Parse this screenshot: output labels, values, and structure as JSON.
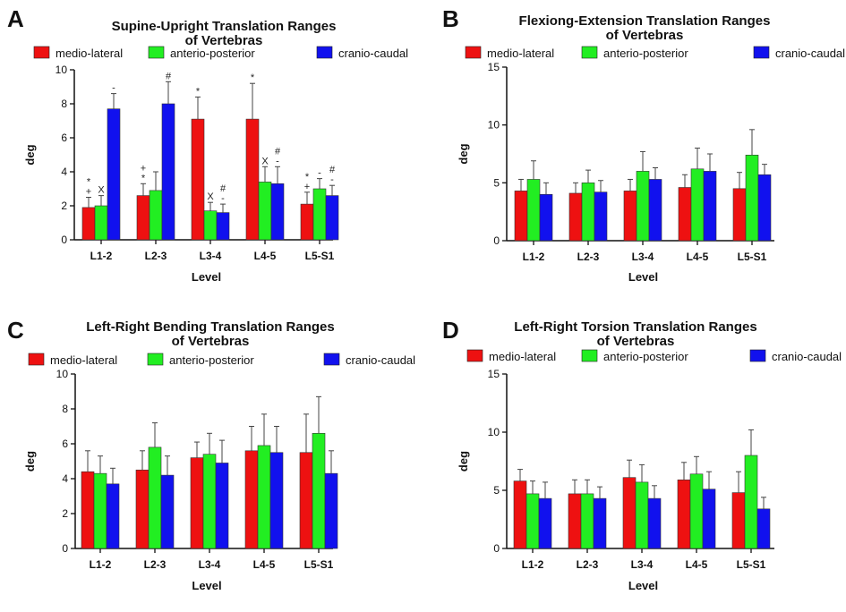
{
  "figure_colors": {
    "medio-lateral": "#ee1111",
    "anterio-posterior": "#22ee22",
    "cranio-caudal": "#1111ee"
  },
  "chart_data": [
    {
      "panel": "A",
      "type": "bar",
      "title_lines": [
        "Supine-Upright Translation Ranges",
        "of Vertebras"
      ],
      "xlabel": "Level",
      "ylabel": "deg",
      "ylim": [
        0,
        10
      ],
      "yticks": [
        0,
        2,
        4,
        6,
        8,
        10
      ],
      "categories": [
        "L1-2",
        "L2-3",
        "L3-4",
        "L4-5",
        "L5-S1"
      ],
      "series": [
        {
          "name": "medio-lateral",
          "color": "#ee1111",
          "values": [
            1.9,
            2.6,
            7.1,
            7.1,
            2.1
          ],
          "errors": [
            0.6,
            0.7,
            1.3,
            2.1,
            0.7
          ]
        },
        {
          "name": "anterio-posterior",
          "color": "#22ee22",
          "values": [
            2.0,
            2.9,
            1.7,
            3.4,
            3.0
          ],
          "errors": [
            0.6,
            1.1,
            0.5,
            0.9,
            0.6
          ]
        },
        {
          "name": "cranio-caudal",
          "color": "#1111ee",
          "values": [
            7.7,
            8.0,
            1.6,
            3.3,
            2.6
          ],
          "errors": [
            0.9,
            1.3,
            0.5,
            1.0,
            0.6
          ]
        }
      ],
      "annotations": [
        {
          "category": 0,
          "series": 0,
          "lines": [
            "*",
            "+"
          ]
        },
        {
          "category": 0,
          "series": 1,
          "lines": [
            "X"
          ]
        },
        {
          "category": 0,
          "series": 2,
          "lines": [
            "-"
          ]
        },
        {
          "category": 1,
          "series": 0,
          "lines": [
            "+",
            "*"
          ]
        },
        {
          "category": 1,
          "series": 2,
          "lines": [
            "#"
          ]
        },
        {
          "category": 2,
          "series": 0,
          "lines": [
            "*"
          ]
        },
        {
          "category": 2,
          "series": 1,
          "lines": [
            "X"
          ]
        },
        {
          "category": 2,
          "series": 2,
          "lines": [
            "#",
            "-"
          ]
        },
        {
          "category": 3,
          "series": 0,
          "lines": [
            "*"
          ]
        },
        {
          "category": 3,
          "series": 1,
          "lines": [
            "X"
          ]
        },
        {
          "category": 3,
          "series": 2,
          "lines": [
            "#",
            "-"
          ]
        },
        {
          "category": 4,
          "series": 0,
          "lines": [
            "*",
            "+"
          ]
        },
        {
          "category": 4,
          "series": 1,
          "lines": [
            "-"
          ]
        },
        {
          "category": 4,
          "series": 2,
          "lines": [
            "#",
            "-"
          ]
        }
      ]
    },
    {
      "panel": "B",
      "type": "bar",
      "title_lines": [
        "Flexiong-Extension Translation Ranges",
        "of Vertebras"
      ],
      "xlabel": "Level",
      "ylabel": "deg",
      "ylim": [
        0,
        15
      ],
      "yticks": [
        0,
        5,
        10,
        15
      ],
      "categories": [
        "L1-2",
        "L2-3",
        "L3-4",
        "L4-5",
        "L5-S1"
      ],
      "series": [
        {
          "name": "medio-lateral",
          "color": "#ee1111",
          "values": [
            4.3,
            4.1,
            4.3,
            4.6,
            4.5
          ],
          "errors": [
            1.0,
            0.9,
            1.0,
            1.1,
            1.4
          ]
        },
        {
          "name": "anterio-posterior",
          "color": "#22ee22",
          "values": [
            5.3,
            5.0,
            6.0,
            6.2,
            7.4
          ],
          "errors": [
            1.6,
            1.1,
            1.7,
            1.8,
            2.2
          ]
        },
        {
          "name": "cranio-caudal",
          "color": "#1111ee",
          "values": [
            4.0,
            4.2,
            5.3,
            6.0,
            5.7
          ],
          "errors": [
            1.0,
            1.0,
            1.0,
            1.5,
            0.9
          ]
        }
      ],
      "annotations": []
    },
    {
      "panel": "C",
      "type": "bar",
      "title_lines": [
        "Left-Right Bending Translation Ranges",
        "of Vertebras"
      ],
      "xlabel": "Level",
      "ylabel": "deg",
      "ylim": [
        0,
        10
      ],
      "yticks": [
        0,
        2,
        4,
        6,
        8,
        10
      ],
      "categories": [
        "L1-2",
        "L2-3",
        "L3-4",
        "L4-5",
        "L5-S1"
      ],
      "series": [
        {
          "name": "medio-lateral",
          "color": "#ee1111",
          "values": [
            4.4,
            4.5,
            5.2,
            5.6,
            5.5
          ],
          "errors": [
            1.2,
            1.1,
            0.9,
            1.4,
            2.2
          ]
        },
        {
          "name": "anterio-posterior",
          "color": "#22ee22",
          "values": [
            4.3,
            5.8,
            5.4,
            5.9,
            6.6
          ],
          "errors": [
            1.0,
            1.4,
            1.2,
            1.8,
            2.1
          ]
        },
        {
          "name": "cranio-caudal",
          "color": "#1111ee",
          "values": [
            3.7,
            4.2,
            4.9,
            5.5,
            4.3
          ],
          "errors": [
            0.9,
            1.1,
            1.3,
            1.5,
            1.3
          ]
        }
      ],
      "annotations": []
    },
    {
      "panel": "D",
      "type": "bar",
      "title_lines": [
        "Left-Right Torsion Translation Ranges",
        "of Vertebras"
      ],
      "xlabel": "Level",
      "ylabel": "deg",
      "ylim": [
        0,
        15
      ],
      "yticks": [
        0,
        5,
        10,
        15
      ],
      "categories": [
        "L1-2",
        "L2-3",
        "L3-4",
        "L4-5",
        "L5-S1"
      ],
      "series": [
        {
          "name": "medio-lateral",
          "color": "#ee1111",
          "values": [
            5.8,
            4.7,
            6.1,
            5.9,
            4.8
          ],
          "errors": [
            1.0,
            1.2,
            1.5,
            1.5,
            1.8
          ]
        },
        {
          "name": "anterio-posterior",
          "color": "#22ee22",
          "values": [
            4.7,
            4.7,
            5.7,
            6.4,
            8.0
          ],
          "errors": [
            1.1,
            1.2,
            1.5,
            1.5,
            2.2
          ]
        },
        {
          "name": "cranio-caudal",
          "color": "#1111ee",
          "values": [
            4.3,
            4.3,
            4.3,
            5.1,
            3.4
          ],
          "errors": [
            1.4,
            1.0,
            1.1,
            1.5,
            1.0
          ]
        }
      ],
      "annotations": []
    }
  ]
}
